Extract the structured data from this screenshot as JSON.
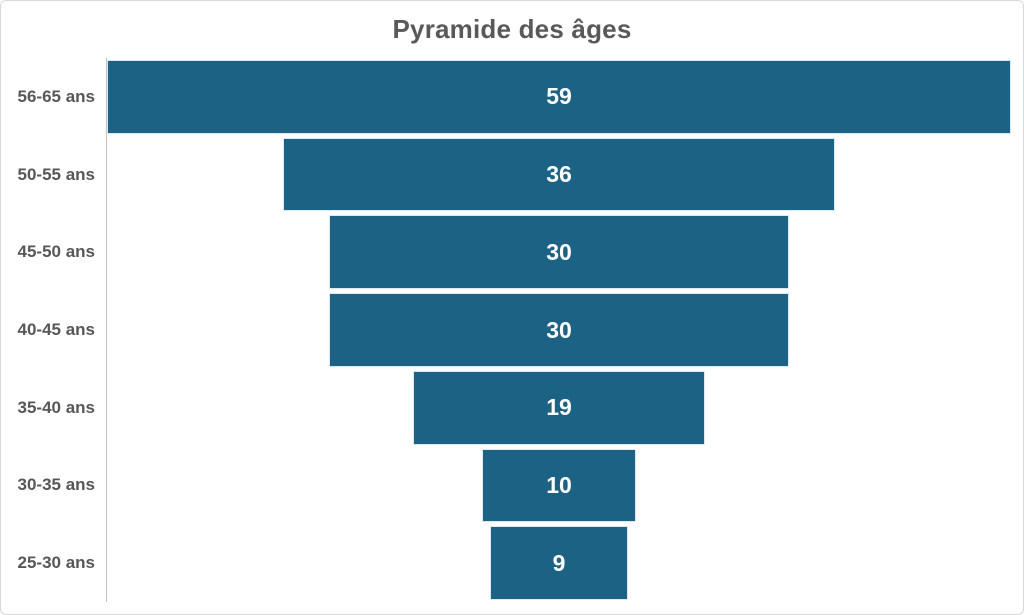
{
  "chart_data": {
    "type": "bar",
    "variant": "funnel",
    "title": "Pyramide des âges",
    "categories": [
      "56-65 ans",
      "50-55 ans",
      "45-50 ans",
      "40-45 ans",
      "35-40 ans",
      "30-35 ans",
      "25-30 ans"
    ],
    "values": [
      59,
      36,
      30,
      30,
      19,
      10,
      9
    ],
    "value_axis_max": 59,
    "orientation": "horizontal-centered",
    "data_labels_position": "inside-center",
    "legend": "none",
    "gridlines": "off",
    "colors": {
      "bar_fill": "#1C6284",
      "bar_border": "#DCE9F1",
      "value_label": "#FFFFFF",
      "category_label": "#575757",
      "title": "#595959",
      "axis_line": "#C2C2C2",
      "chart_border": "#D9D9D9",
      "background": "#FFFFFF"
    }
  }
}
